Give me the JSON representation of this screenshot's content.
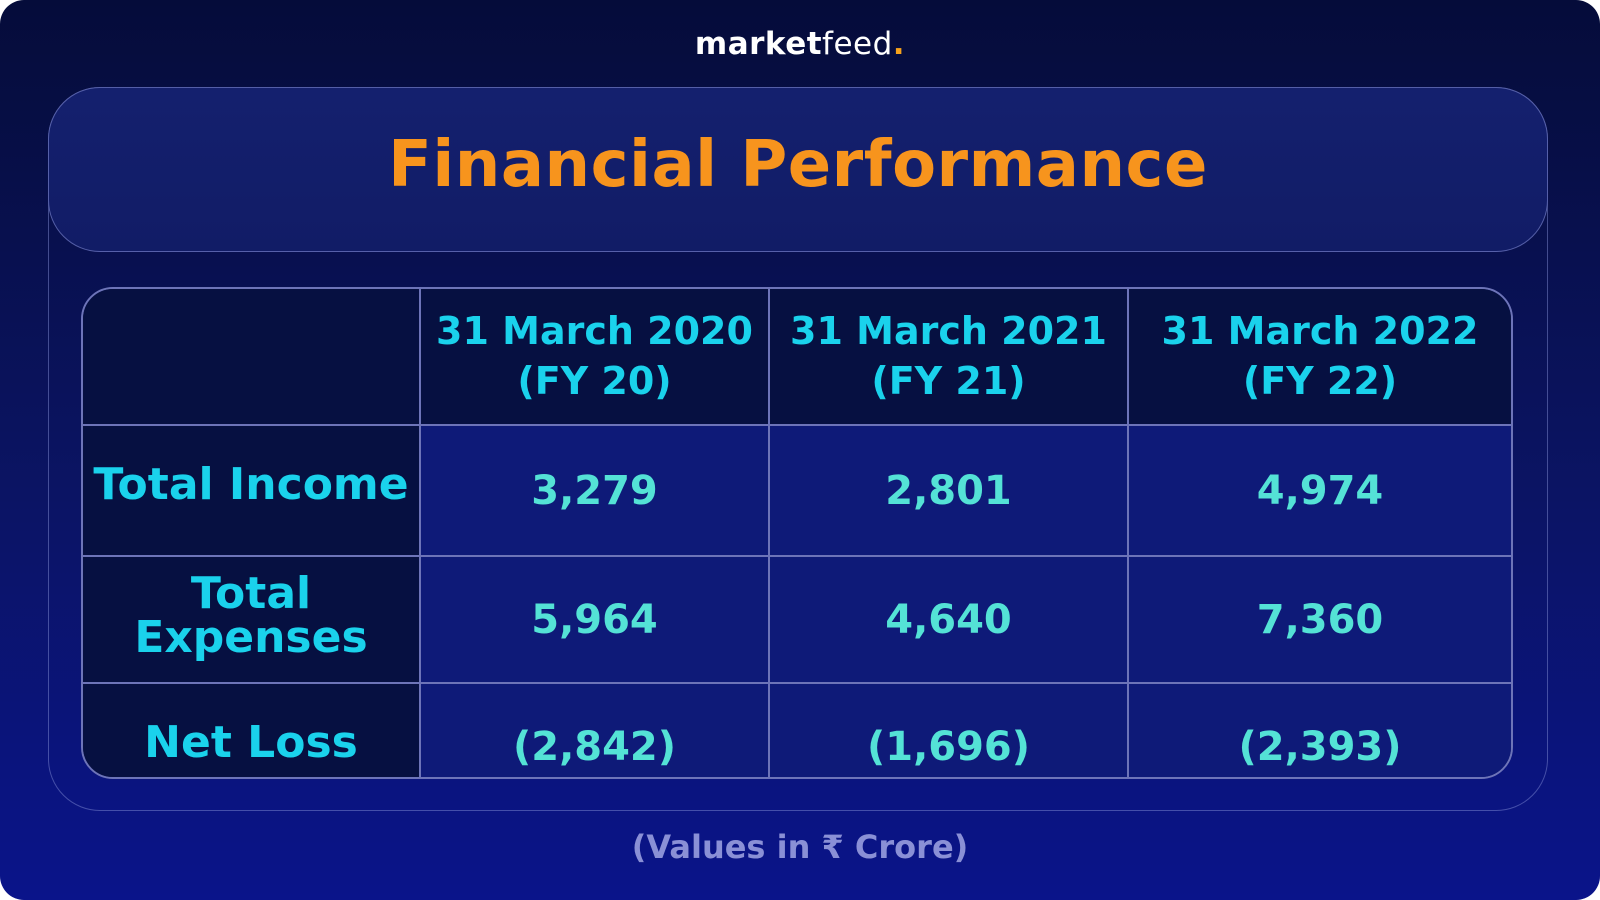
{
  "brand": {
    "logo_part1": "market",
    "logo_part2": "feed",
    "logo_dot": ".",
    "accent_color": "#f7a21b"
  },
  "title": "Financial Performance",
  "footnote": "(Values in ₹ Crore)",
  "colors": {
    "title": "#f7941d",
    "header_text": "#1ad2ec",
    "value_text": "#54e2d6",
    "background_top": "#050c3a",
    "background_bottom": "#0a148a"
  },
  "chart_data": {
    "type": "table",
    "columns": [
      {
        "line1": "31 March 2020",
        "line2": "(FY 20)"
      },
      {
        "line1": "31 March 2021",
        "line2": "(FY 21)"
      },
      {
        "line1": "31 March 2022",
        "line2": "(FY 22)"
      }
    ],
    "rows": [
      {
        "label_line1": "Total Income",
        "label_line2": "",
        "values": [
          "3,279",
          "2,801",
          "4,974"
        ]
      },
      {
        "label_line1": "Total",
        "label_line2": "Expenses",
        "values": [
          "5,964",
          "4,640",
          "7,360"
        ]
      },
      {
        "label_line1": "Net Loss",
        "label_line2": "",
        "values": [
          "(2,842)",
          "(1,696)",
          "(2,393)"
        ]
      }
    ]
  }
}
